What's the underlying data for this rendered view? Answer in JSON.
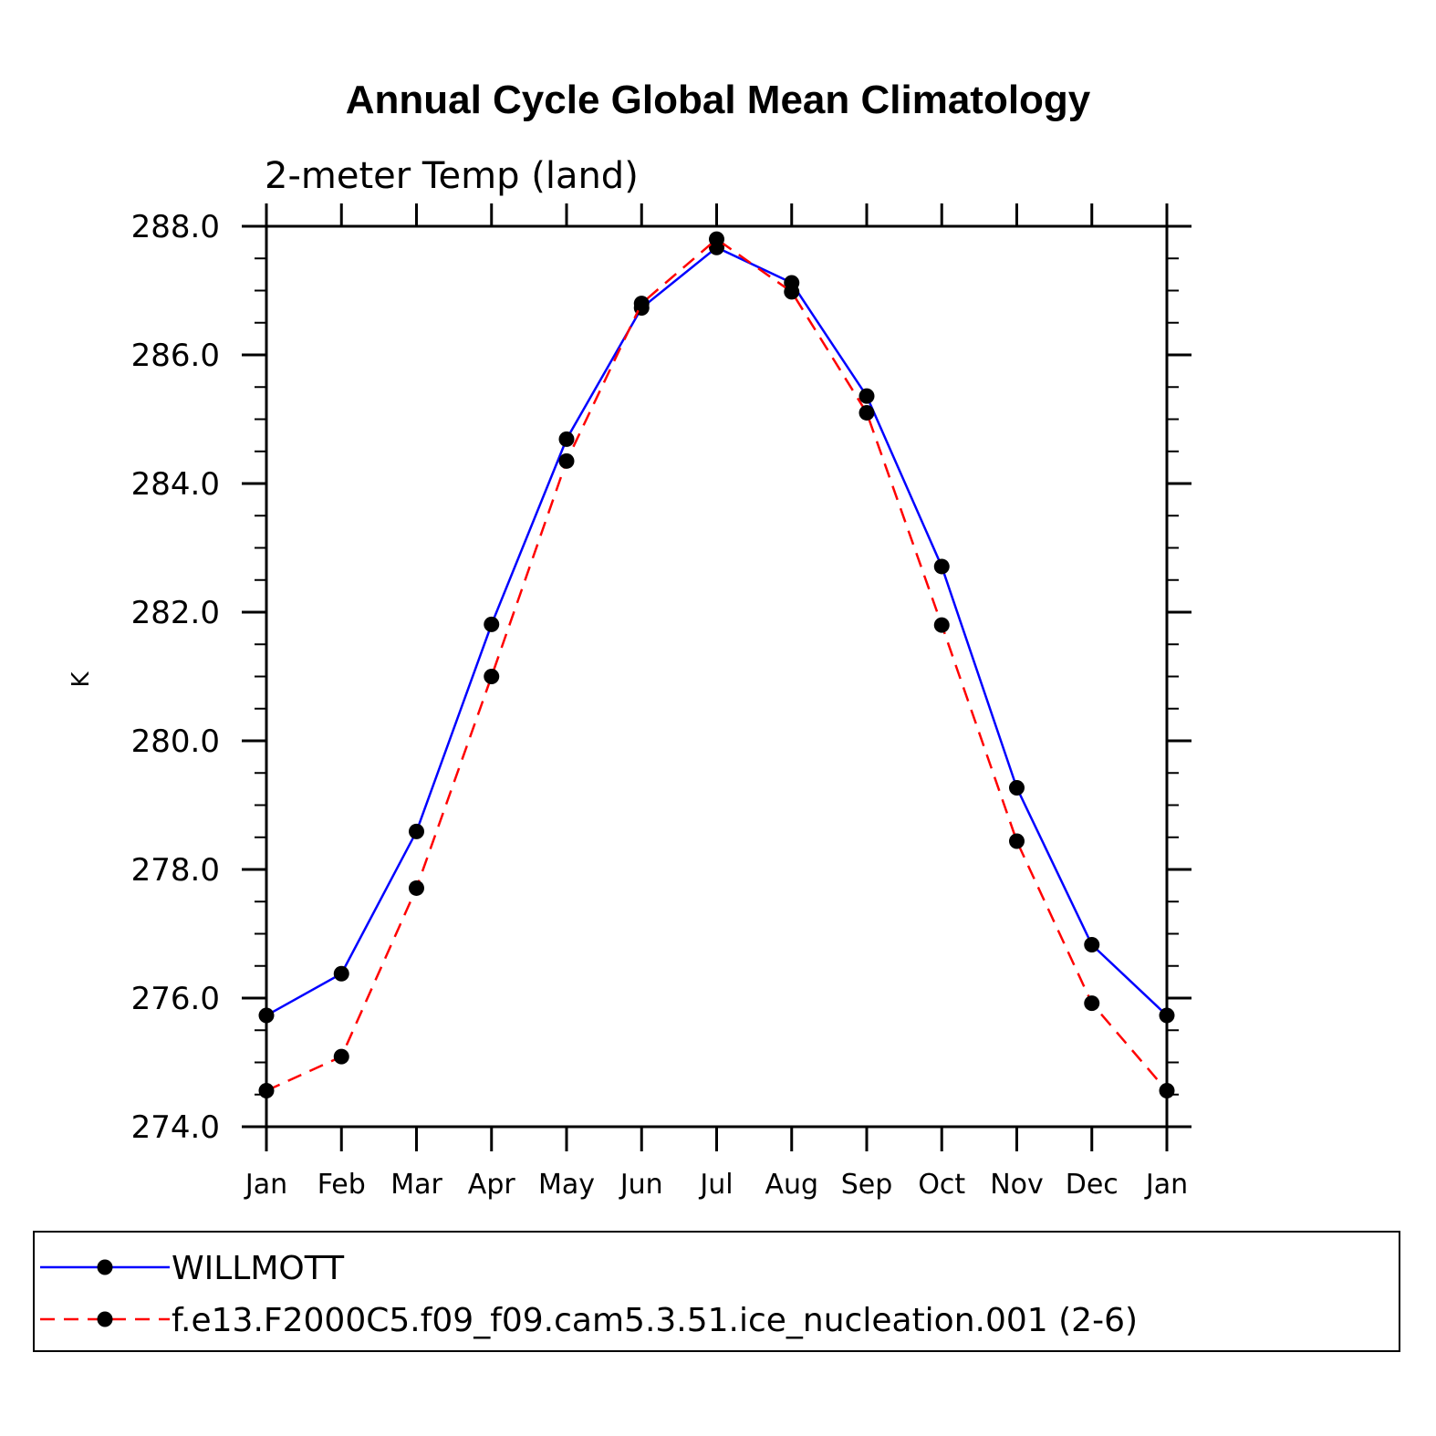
{
  "chart_data": {
    "type": "line",
    "title": "Annual Cycle Global Mean Climatology",
    "subtitle": "2-meter Temp (land)",
    "xlabel": "",
    "ylabel": "K",
    "categories": [
      "Jan",
      "Feb",
      "Mar",
      "Apr",
      "May",
      "Jun",
      "Jul",
      "Aug",
      "Sep",
      "Oct",
      "Nov",
      "Dec",
      "Jan"
    ],
    "ylim": [
      274.0,
      288.0
    ],
    "yticks": [
      "274.0",
      "276.0",
      "278.0",
      "280.0",
      "282.0",
      "284.0",
      "286.0",
      "288.0"
    ],
    "grid": false,
    "legend_position": "bottom",
    "series": [
      {
        "name": "WILLMOTT",
        "color": "#0000ff",
        "dash": "solid",
        "marker": "circle",
        "values": [
          275.73,
          276.38,
          278.59,
          281.81,
          284.69,
          286.73,
          287.67,
          287.12,
          285.36,
          282.71,
          279.27,
          276.83,
          275.73
        ]
      },
      {
        "name": "f.e13.F2000C5.f09_f09.cam5.3.51.ice_nucleation.001 (2-6)",
        "color": "#ff0000",
        "dash": "dashed",
        "marker": "circle",
        "values": [
          274.56,
          275.09,
          277.71,
          281.0,
          284.35,
          286.8,
          287.8,
          286.98,
          285.1,
          281.8,
          278.44,
          275.92,
          274.56
        ]
      }
    ]
  }
}
